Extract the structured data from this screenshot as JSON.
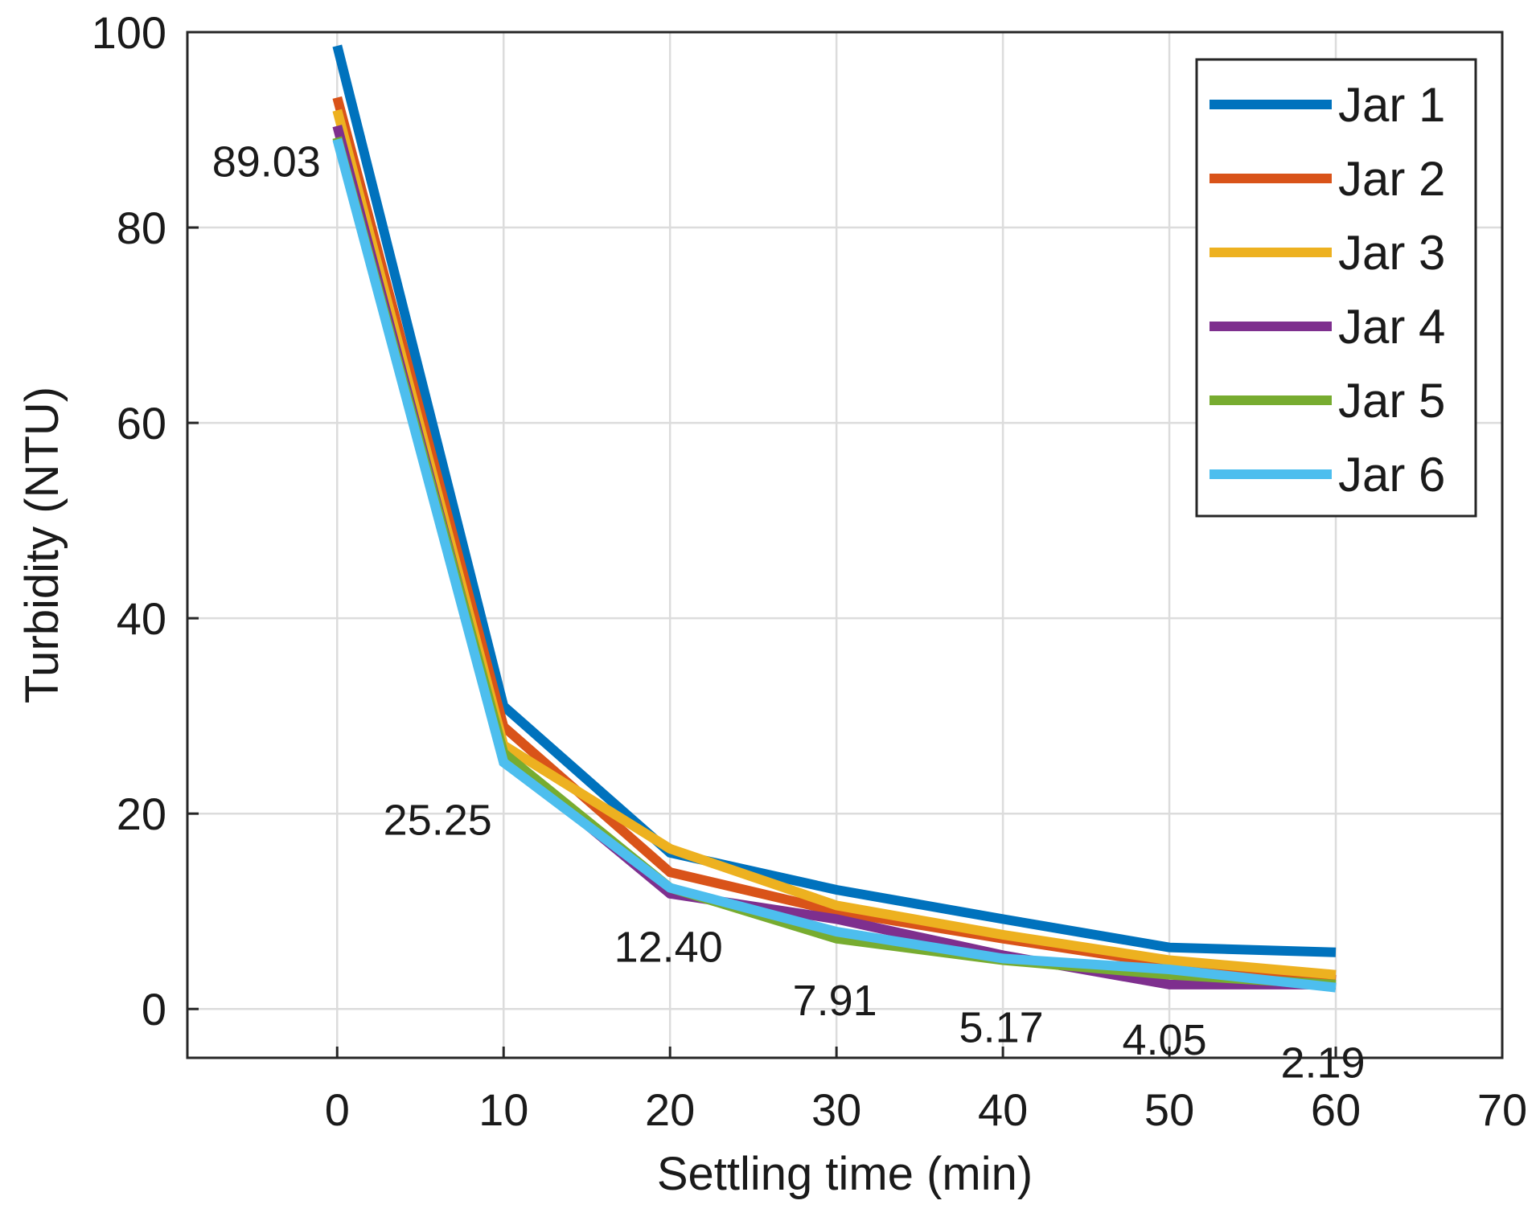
{
  "chart_data": {
    "type": "line",
    "title": "",
    "xlabel": "Settling time (min)",
    "ylabel": "Turbidity (NTU)",
    "xlim": [
      -9,
      70
    ],
    "ylim": [
      -5,
      100
    ],
    "xticks": [
      0,
      10,
      20,
      30,
      40,
      50,
      60,
      70
    ],
    "yticks": [
      0,
      20,
      40,
      60,
      80,
      100
    ],
    "grid": true,
    "legend_position": "top-right",
    "x": [
      0,
      10,
      20,
      30,
      40,
      50,
      60
    ],
    "series": [
      {
        "name": "Jar 1",
        "color": "#0072BD",
        "values": [
          98.6,
          31.0,
          16.0,
          12.2,
          9.2,
          6.3,
          5.8
        ]
      },
      {
        "name": "Jar 2",
        "color": "#D95319",
        "values": [
          93.3,
          28.9,
          14.0,
          10.0,
          7.2,
          4.6,
          3.0
        ]
      },
      {
        "name": "Jar 3",
        "color": "#EDB120",
        "values": [
          92.0,
          27.0,
          16.4,
          10.6,
          7.6,
          5.0,
          3.5
        ]
      },
      {
        "name": "Jar 4",
        "color": "#7E2F8E",
        "values": [
          90.4,
          25.9,
          11.8,
          9.2,
          5.5,
          2.5,
          2.5
        ]
      },
      {
        "name": "Jar 5",
        "color": "#77AC30",
        "values": [
          89.2,
          26.2,
          12.4,
          7.2,
          5.0,
          3.5,
          2.5
        ]
      },
      {
        "name": "Jar 6",
        "color": "#4DBEEE",
        "values": [
          89.03,
          25.25,
          12.4,
          7.91,
          5.17,
          4.05,
          2.19
        ]
      }
    ],
    "annotations": [
      {
        "x": 0,
        "y": 89.03,
        "text": "89.03"
      },
      {
        "x": 10,
        "y": 25.25,
        "text": "25.25"
      },
      {
        "x": 20,
        "y": 12.4,
        "text": "12.40"
      },
      {
        "x": 30,
        "y": 7.91,
        "text": "7.91"
      },
      {
        "x": 40,
        "y": 5.17,
        "text": "5.17"
      },
      {
        "x": 50,
        "y": 4.05,
        "text": "4.05"
      },
      {
        "x": 60,
        "y": 2.19,
        "text": "2.19"
      }
    ]
  }
}
